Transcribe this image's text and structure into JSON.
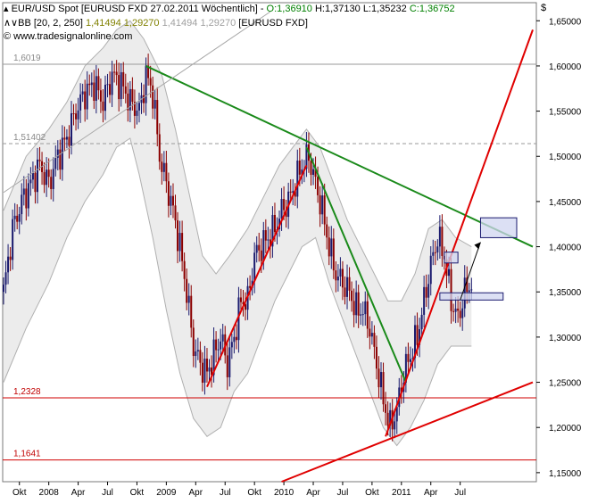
{
  "header": {
    "line1": {
      "symbol": "EUR/USD Spot [EURUSD FXD",
      "date": "27.02.2011",
      "period": "Wöchentlich]",
      "open": "O:1,36910",
      "high": "H:1,37130",
      "low": "L:1,35232",
      "close": "C:1,36752"
    },
    "line2": {
      "indicator": "BB [20, 2, 250]",
      "upper": "1,41494",
      "middle": "1,29270",
      "lower": "1,41494",
      "lower2": "1,29270",
      "source": "[EURUSD FXD]"
    },
    "line3": {
      "copyright": "www.tradesignalonline.com"
    },
    "currency_symbol": "$"
  },
  "colors": {
    "up_candle": "#1a1a6e",
    "down_candle": "#8b0000",
    "trend_green": "#1a8a1a",
    "trend_red": "#e00000",
    "band": "#b0b0b0",
    "band_fill": "#ececec",
    "header_open": "#008000",
    "header_close": "#008000",
    "box_fill": "#d0d6f0",
    "box_stroke": "#1a1a6e"
  },
  "chart_data": {
    "type": "candlestick",
    "instrument": "EUR/USD",
    "timeframe": "weekly",
    "ylim": [
      1.14,
      1.67
    ],
    "yticks": [
      "1,15000",
      "1,20000",
      "1,25000",
      "1,30000",
      "1,35000",
      "1,40000",
      "1,45000",
      "1,50000",
      "1,55000",
      "1,60000",
      "1,65000"
    ],
    "xticks": [
      "Okt",
      "2008",
      "Apr",
      "Jul",
      "Okt",
      "2009",
      "Apr",
      "Jul",
      "Okt",
      "2010",
      "Apr",
      "Jul",
      "Okt",
      "2011",
      "Apr",
      "Jul"
    ],
    "horizontal_levels": [
      {
        "label": "1,6019",
        "value": 1.6019,
        "style": "solid-gray"
      },
      {
        "label": "1,51402",
        "value": 1.51402,
        "style": "dashed-gray"
      },
      {
        "label": "1,2328",
        "value": 1.2328,
        "style": "solid-red"
      },
      {
        "label": "1,1641",
        "value": 1.1641,
        "style": "solid-red"
      }
    ],
    "price_path": [
      [
        0,
        1.35
      ],
      [
        4,
        1.42
      ],
      [
        8,
        1.45
      ],
      [
        12,
        1.47
      ],
      [
        16,
        1.49
      ],
      [
        20,
        1.47
      ],
      [
        24,
        1.5
      ],
      [
        28,
        1.52
      ],
      [
        32,
        1.55
      ],
      [
        36,
        1.57
      ],
      [
        40,
        1.58
      ],
      [
        44,
        1.56
      ],
      [
        48,
        1.59
      ],
      [
        52,
        1.58
      ],
      [
        56,
        1.56
      ],
      [
        60,
        1.55
      ],
      [
        63,
        1.59
      ],
      [
        66,
        1.57
      ],
      [
        69,
        1.5
      ],
      [
        72,
        1.47
      ],
      [
        75,
        1.44
      ],
      [
        78,
        1.4
      ],
      [
        81,
        1.35
      ],
      [
        84,
        1.29
      ],
      [
        87,
        1.27
      ],
      [
        90,
        1.26
      ],
      [
        93,
        1.28
      ],
      [
        96,
        1.3
      ],
      [
        99,
        1.27
      ],
      [
        102,
        1.3
      ],
      [
        105,
        1.34
      ],
      [
        108,
        1.34
      ],
      [
        111,
        1.39
      ],
      [
        114,
        1.4
      ],
      [
        117,
        1.41
      ],
      [
        120,
        1.42
      ],
      [
        123,
        1.44
      ],
      [
        126,
        1.45
      ],
      [
        129,
        1.47
      ],
      [
        132,
        1.49
      ],
      [
        135,
        1.5
      ],
      [
        138,
        1.47
      ],
      [
        141,
        1.44
      ],
      [
        144,
        1.4
      ],
      [
        147,
        1.37
      ],
      [
        150,
        1.36
      ],
      [
        153,
        1.35
      ],
      [
        156,
        1.33
      ],
      [
        159,
        1.33
      ],
      [
        162,
        1.31
      ],
      [
        165,
        1.27
      ],
      [
        168,
        1.23
      ],
      [
        171,
        1.2
      ],
      [
        174,
        1.22
      ],
      [
        177,
        1.26
      ],
      [
        180,
        1.28
      ],
      [
        183,
        1.3
      ],
      [
        186,
        1.34
      ],
      [
        189,
        1.38
      ],
      [
        192,
        1.41
      ],
      [
        195,
        1.39
      ],
      [
        198,
        1.34
      ],
      [
        201,
        1.32
      ],
      [
        204,
        1.35
      ],
      [
        207,
        1.36
      ]
    ],
    "bollinger_bands": {
      "upper": [
        [
          0,
          1.44
        ],
        [
          10,
          1.5
        ],
        [
          20,
          1.53
        ],
        [
          28,
          1.56
        ],
        [
          36,
          1.6
        ],
        [
          44,
          1.62
        ],
        [
          50,
          1.64
        ],
        [
          56,
          1.65
        ],
        [
          62,
          1.63
        ],
        [
          70,
          1.59
        ],
        [
          76,
          1.53
        ],
        [
          82,
          1.46
        ],
        [
          88,
          1.39
        ],
        [
          94,
          1.37
        ],
        [
          100,
          1.39
        ],
        [
          108,
          1.42
        ],
        [
          116,
          1.46
        ],
        [
          122,
          1.49
        ],
        [
          128,
          1.51
        ],
        [
          134,
          1.53
        ],
        [
          140,
          1.51
        ],
        [
          146,
          1.47
        ],
        [
          152,
          1.43
        ],
        [
          158,
          1.4
        ],
        [
          164,
          1.37
        ],
        [
          170,
          1.34
        ],
        [
          176,
          1.34
        ],
        [
          182,
          1.37
        ],
        [
          188,
          1.42
        ],
        [
          194,
          1.43
        ],
        [
          200,
          1.41
        ],
        [
          207,
          1.4
        ]
      ],
      "lower": [
        [
          0,
          1.25
        ],
        [
          10,
          1.31
        ],
        [
          20,
          1.36
        ],
        [
          28,
          1.41
        ],
        [
          36,
          1.45
        ],
        [
          44,
          1.48
        ],
        [
          50,
          1.51
        ],
        [
          56,
          1.52
        ],
        [
          60,
          1.48
        ],
        [
          66,
          1.41
        ],
        [
          72,
          1.33
        ],
        [
          78,
          1.26
        ],
        [
          84,
          1.21
        ],
        [
          90,
          1.19
        ],
        [
          96,
          1.2
        ],
        [
          102,
          1.24
        ],
        [
          108,
          1.26
        ],
        [
          114,
          1.3
        ],
        [
          120,
          1.34
        ],
        [
          126,
          1.37
        ],
        [
          132,
          1.4
        ],
        [
          138,
          1.41
        ],
        [
          144,
          1.36
        ],
        [
          150,
          1.32
        ],
        [
          156,
          1.28
        ],
        [
          162,
          1.24
        ],
        [
          168,
          1.2
        ],
        [
          174,
          1.18
        ],
        [
          180,
          1.2
        ],
        [
          186,
          1.23
        ],
        [
          192,
          1.27
        ],
        [
          198,
          1.29
        ],
        [
          204,
          1.29
        ],
        [
          207,
          1.29
        ]
      ]
    },
    "trendlines": [
      {
        "color": "green",
        "from": [
          63,
          1.6
        ],
        "to": [
          "end",
          1.4
        ]
      },
      {
        "color": "green",
        "from": [
          134,
          1.51
        ],
        "to": [
          178,
          1.25
        ]
      },
      {
        "color": "red",
        "from": [
          90,
          1.245
        ],
        "to": [
          134,
          1.49
        ]
      },
      {
        "color": "red",
        "from": [
          169,
          1.19
        ],
        "to": [
          "end",
          1.64
        ]
      },
      {
        "color": "red",
        "from": [
          123,
          1.14
        ],
        "to": [
          "end",
          1.25
        ]
      },
      {
        "color": "gray",
        "from": [
          0,
          1.46
        ],
        "to": [
          118,
          1.66
        ]
      }
    ]
  }
}
